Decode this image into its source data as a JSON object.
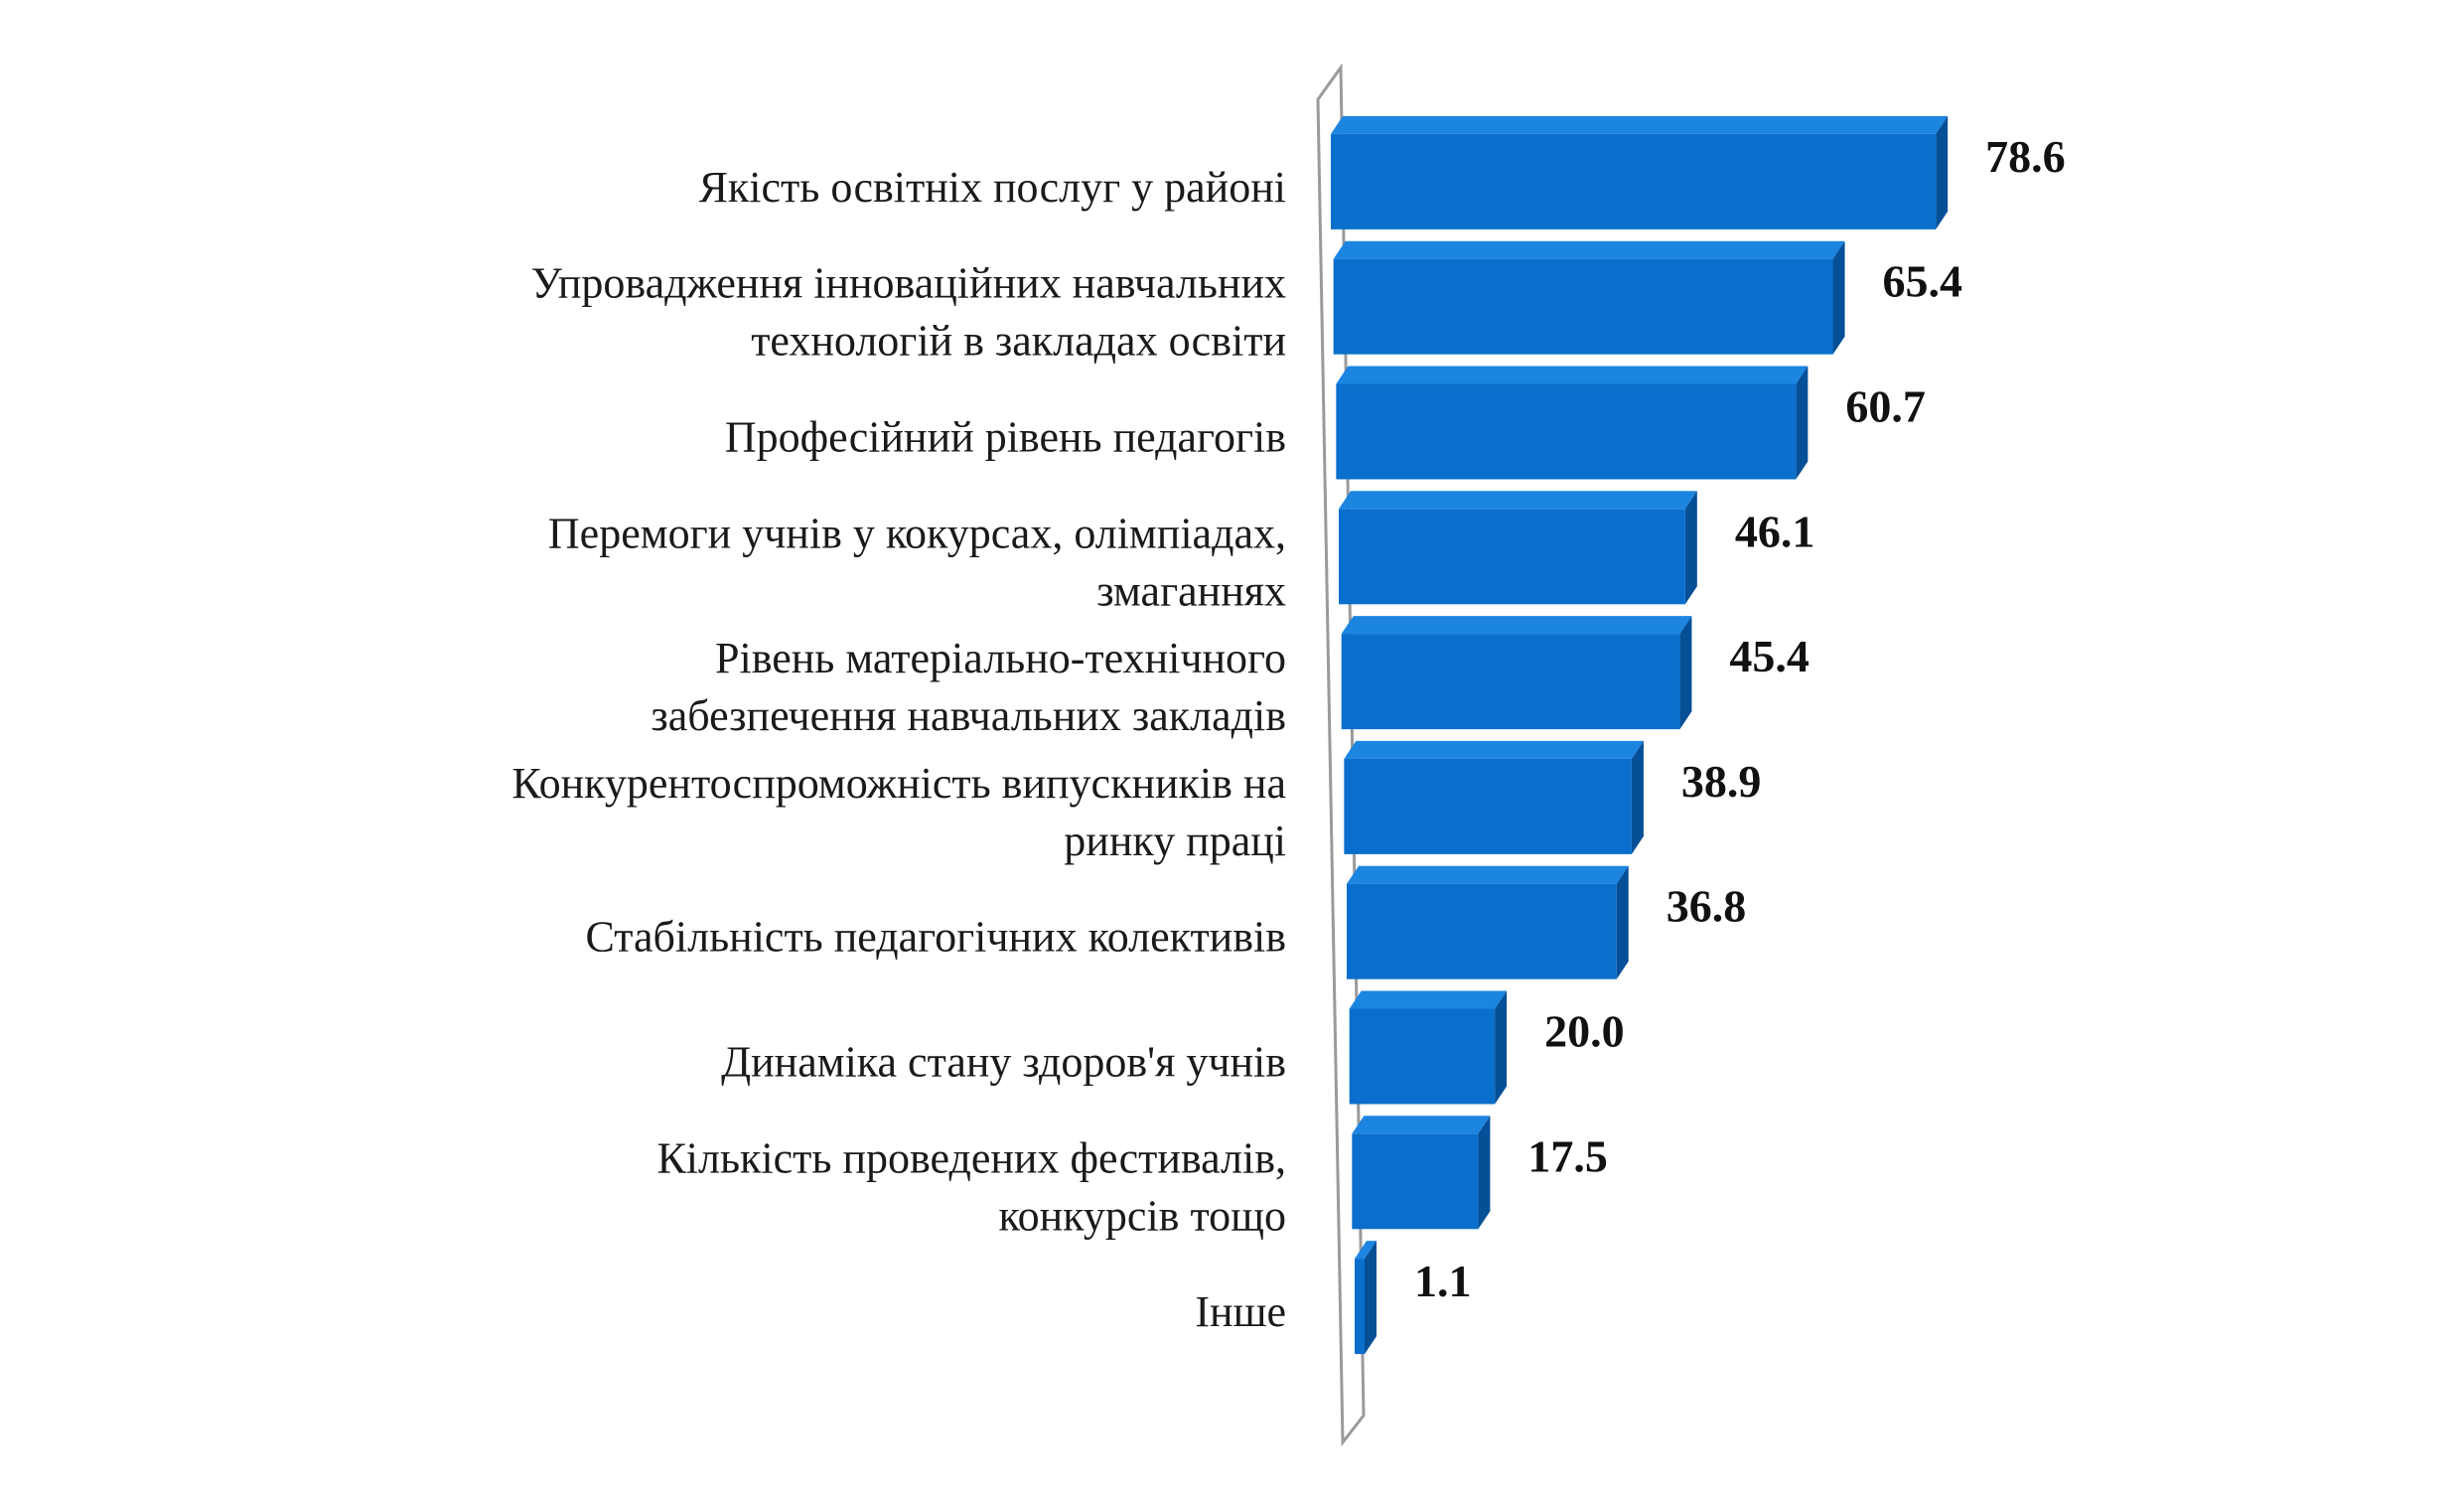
{
  "chart_data": {
    "type": "bar",
    "orientation": "horizontal",
    "style": "3d",
    "categories": [
      [
        "Якість освітніх послуг у районі"
      ],
      [
        "Упровадження інноваційних навчальних",
        "технологій в закладах освіти"
      ],
      [
        "Професійний рівень педагогів"
      ],
      [
        "Перемоги учнів у кокурсах, олімпіадах,",
        "змаганнях"
      ],
      [
        "Рівень матеріально-технічного",
        "забезпечення навчальних закладів"
      ],
      [
        "Конкурентоспроможність випускників на",
        "ринку праці"
      ],
      [
        "Стабільність педагогічних колективів"
      ],
      [
        "Динаміка стану здоров'я учнів"
      ],
      [
        "Кількість проведених фестивалів,",
        "конкурсів тощо"
      ],
      [
        "Інше"
      ]
    ],
    "values": [
      78.6,
      65.4,
      60.7,
      46.1,
      45.4,
      38.9,
      36.8,
      20.0,
      17.5,
      1.1
    ],
    "value_labels": [
      "78.6",
      "65.4",
      "60.7",
      "46.1",
      "45.4",
      "38.9",
      "36.8",
      "20.0",
      "17.5",
      "1.1"
    ],
    "xlim": [
      0,
      80
    ],
    "grid": false,
    "legend": "none",
    "colors": {
      "bar_front": "#0a6fcc",
      "bar_top": "#1c85e0",
      "bar_side": "#044f96",
      "axis_wall": "#9a9a9a"
    }
  }
}
